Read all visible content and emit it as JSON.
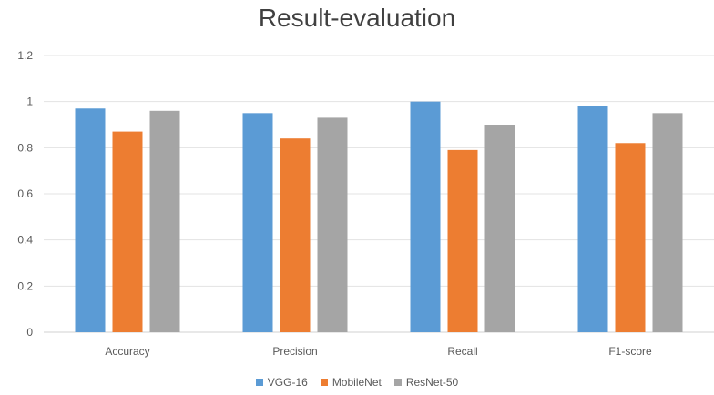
{
  "chart_data": {
    "type": "bar",
    "title": "Result-evaluation",
    "xlabel": "",
    "ylabel": "",
    "categories": [
      "Accuracy",
      "Precision",
      "Recall",
      "F1-score"
    ],
    "series": [
      {
        "name": "VGG-16",
        "color": "#5B9BD5",
        "values": [
          0.97,
          0.95,
          1.0,
          0.98
        ]
      },
      {
        "name": "MobileNet",
        "color": "#ED7D31",
        "values": [
          0.87,
          0.84,
          0.79,
          0.82
        ]
      },
      {
        "name": "ResNet-50",
        "color": "#A5A5A5",
        "values": [
          0.96,
          0.93,
          0.9,
          0.95
        ]
      }
    ],
    "ylim": [
      0,
      1.2
    ],
    "yticks": [
      "0",
      "0.2",
      "0.4",
      "0.6",
      "0.8",
      "1",
      "1.2"
    ],
    "ytick_values": [
      0,
      0.2,
      0.4,
      0.6,
      0.8,
      1,
      1.2
    ],
    "grid": true,
    "legend_position": "bottom"
  }
}
